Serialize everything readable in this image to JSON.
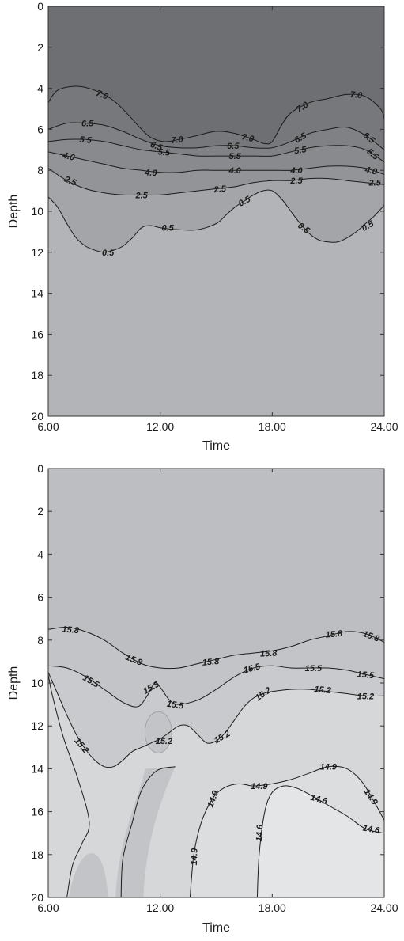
{
  "chart_data": [
    {
      "type": "contour",
      "xlabel": "Time",
      "ylabel": "Depth",
      "xlim": [
        6,
        24
      ],
      "ylim": [
        0,
        20
      ],
      "y_inverted": true,
      "x_ticks": [
        6,
        12,
        18,
        24
      ],
      "x_tick_labels": [
        "6.00",
        "12.00",
        "18.00",
        "24.00"
      ],
      "y_ticks": [
        0,
        2,
        4,
        6,
        8,
        10,
        12,
        14,
        16,
        18,
        20
      ],
      "y_tick_labels": [
        "0",
        "2",
        "4",
        "6",
        "8",
        "10",
        "12",
        "14",
        "16",
        "18",
        "20"
      ],
      "contour_levels": [
        7.0,
        6.5,
        5.5,
        4.0,
        2.5,
        0.5
      ],
      "contours": [
        {
          "level": 7.0,
          "label": "7.0",
          "x": [
            6.0,
            6.5,
            7.5,
            8.5,
            9.5,
            10.3,
            11.0,
            11.5,
            12.2,
            13.0,
            14.0,
            15.0,
            16.0,
            17.0,
            17.6,
            18.0,
            18.5,
            19.0,
            20.0,
            21.0,
            22.0,
            23.0,
            23.8,
            24.0
          ],
          "y": [
            4.7,
            4.1,
            3.9,
            4.1,
            4.6,
            5.3,
            6.0,
            6.4,
            6.6,
            6.5,
            6.3,
            6.1,
            6.2,
            6.5,
            6.7,
            6.6,
            5.8,
            5.2,
            4.7,
            4.5,
            4.3,
            4.4,
            5.0,
            5.5
          ]
        },
        {
          "level": 6.5,
          "label": "6.5",
          "x": [
            6.0,
            7.0,
            8.0,
            9.0,
            10.0,
            11.0,
            12.0,
            13.0,
            14.0,
            15.0,
            16.0,
            17.0,
            18.0,
            19.0,
            20.0,
            21.0,
            22.0,
            23.0,
            24.0
          ],
          "y": [
            6.0,
            5.7,
            5.7,
            5.8,
            6.1,
            6.5,
            6.8,
            6.9,
            6.9,
            6.8,
            6.8,
            6.9,
            6.9,
            6.6,
            6.2,
            6.0,
            5.9,
            6.3,
            7.0
          ]
        },
        {
          "level": 5.5,
          "label": "5.5",
          "x": [
            6.0,
            7.0,
            8.0,
            9.0,
            10.0,
            11.0,
            12.0,
            13.0,
            14.0,
            15.0,
            16.0,
            17.0,
            18.0,
            19.0,
            20.0,
            21.0,
            22.0,
            23.0,
            24.0
          ],
          "y": [
            6.6,
            6.5,
            6.5,
            6.6,
            6.8,
            7.0,
            7.1,
            7.2,
            7.3,
            7.3,
            7.3,
            7.3,
            7.3,
            7.1,
            6.9,
            6.8,
            6.8,
            7.0,
            7.6
          ]
        },
        {
          "level": 4.0,
          "label": "4.0",
          "x": [
            6.0,
            7.0,
            8.0,
            9.0,
            10.0,
            11.0,
            12.0,
            13.0,
            14.0,
            15.0,
            16.0,
            17.0,
            18.0,
            19.0,
            20.0,
            21.0,
            22.0,
            23.0,
            24.0
          ],
          "y": [
            7.1,
            7.3,
            7.5,
            7.7,
            7.9,
            8.0,
            8.1,
            8.1,
            8.0,
            8.0,
            8.0,
            8.0,
            8.0,
            8.0,
            7.9,
            7.8,
            7.8,
            7.9,
            8.2
          ]
        },
        {
          "level": 2.5,
          "label": "2.5",
          "x": [
            6.0,
            7.0,
            8.0,
            9.0,
            10.0,
            11.0,
            12.0,
            13.0,
            14.0,
            15.0,
            16.0,
            17.0,
            18.0,
            19.0,
            20.0,
            21.0,
            22.0,
            23.0,
            24.0
          ],
          "y": [
            7.9,
            8.5,
            8.9,
            9.1,
            9.2,
            9.2,
            9.2,
            9.1,
            9.0,
            8.9,
            8.8,
            8.6,
            8.5,
            8.5,
            8.4,
            8.4,
            8.5,
            8.6,
            8.7
          ]
        },
        {
          "level": 0.5,
          "label": "0.5",
          "x": [
            6.0,
            6.5,
            7.0,
            7.5,
            8.0,
            8.5,
            9.0,
            9.5,
            10.0,
            10.5,
            11.0,
            11.5,
            12.0,
            13.0,
            14.0,
            15.0,
            15.5,
            16.0,
            16.5,
            17.0,
            17.5,
            18.0,
            18.5,
            19.0,
            19.5,
            20.0,
            20.5,
            21.0,
            21.5,
            22.0,
            22.5,
            23.0,
            23.5,
            24.0
          ],
          "y": [
            9.3,
            9.8,
            10.6,
            11.3,
            11.7,
            11.9,
            12.0,
            11.9,
            11.7,
            11.3,
            10.8,
            10.7,
            10.8,
            10.9,
            10.9,
            10.6,
            10.2,
            9.8,
            9.5,
            9.2,
            9.0,
            9.0,
            9.4,
            10.0,
            10.6,
            11.1,
            11.4,
            11.5,
            11.5,
            11.3,
            11.0,
            10.6,
            10.2,
            9.7
          ]
        }
      ],
      "contour_labels": [
        {
          "text": "7.0",
          "x": 8.9,
          "y": 4.3,
          "angle": 22
        },
        {
          "text": "7.0",
          "x": 12.9,
          "y": 6.5,
          "angle": -6
        },
        {
          "text": "7.0",
          "x": 16.7,
          "y": 6.4,
          "angle": 14
        },
        {
          "text": "7.0",
          "x": 19.6,
          "y": 4.9,
          "angle": -32
        },
        {
          "text": "7.0",
          "x": 22.5,
          "y": 4.3,
          "angle": 5
        },
        {
          "text": "6.5",
          "x": 8.1,
          "y": 5.7,
          "angle": 0
        },
        {
          "text": "6.5",
          "x": 11.8,
          "y": 6.8,
          "angle": 20
        },
        {
          "text": "6.5",
          "x": 15.9,
          "y": 6.8,
          "angle": 0
        },
        {
          "text": "6.5",
          "x": 19.5,
          "y": 6.4,
          "angle": -30
        },
        {
          "text": "6.5",
          "x": 23.2,
          "y": 6.4,
          "angle": 40
        },
        {
          "text": "5.5",
          "x": 8.0,
          "y": 6.5,
          "angle": 5
        },
        {
          "text": "5.5",
          "x": 12.2,
          "y": 7.1,
          "angle": 5
        },
        {
          "text": "5.5",
          "x": 16.0,
          "y": 7.3,
          "angle": 0
        },
        {
          "text": "5.5",
          "x": 19.5,
          "y": 7.0,
          "angle": -8
        },
        {
          "text": "5.5",
          "x": 23.4,
          "y": 7.2,
          "angle": 40
        },
        {
          "text": "4.0",
          "x": 7.1,
          "y": 7.3,
          "angle": 15
        },
        {
          "text": "4.0",
          "x": 11.5,
          "y": 8.1,
          "angle": 3
        },
        {
          "text": "4.0",
          "x": 16.0,
          "y": 8.0,
          "angle": 0
        },
        {
          "text": "4.0",
          "x": 19.3,
          "y": 8.0,
          "angle": 0
        },
        {
          "text": "4.0",
          "x": 23.3,
          "y": 8.0,
          "angle": 12
        },
        {
          "text": "2.5",
          "x": 7.2,
          "y": 8.5,
          "angle": 22
        },
        {
          "text": "2.5",
          "x": 11.0,
          "y": 9.2,
          "angle": 0
        },
        {
          "text": "2.5",
          "x": 15.2,
          "y": 8.9,
          "angle": -6
        },
        {
          "text": "2.5",
          "x": 19.3,
          "y": 8.5,
          "angle": 0
        },
        {
          "text": "2.5",
          "x": 23.5,
          "y": 8.6,
          "angle": 0
        },
        {
          "text": "0.5",
          "x": 9.2,
          "y": 12.0,
          "angle": 0
        },
        {
          "text": "0.5",
          "x": 12.4,
          "y": 10.8,
          "angle": 0
        },
        {
          "text": "0.5",
          "x": 16.5,
          "y": 9.5,
          "angle": -28
        },
        {
          "text": "0.5",
          "x": 19.7,
          "y": 10.8,
          "angle": 35
        },
        {
          "text": "0.5",
          "x": 23.1,
          "y": 10.7,
          "angle": -30
        }
      ],
      "fills": [
        {
          "region": "above-7.0",
          "color": "#6e6f72"
        },
        {
          "region": "7.0-6.5",
          "color": "#77787b"
        },
        {
          "region": "6.5-5.5",
          "color": "#808184"
        },
        {
          "region": "5.5-4.0",
          "color": "#898a8d"
        },
        {
          "region": "4.0-2.5",
          "color": "#939497"
        },
        {
          "region": "2.5-0.5",
          "color": "#a4a5a8"
        },
        {
          "region": "below-0.5",
          "color": "#b3b4b7"
        }
      ]
    },
    {
      "type": "contour",
      "xlabel": "Time",
      "ylabel": "Depth",
      "xlim": [
        6,
        24
      ],
      "ylim": [
        0,
        20
      ],
      "y_inverted": true,
      "x_ticks": [
        6,
        12,
        18,
        24
      ],
      "x_tick_labels": [
        "6.00",
        "12.00",
        "18.00",
        "24.00"
      ],
      "y_ticks": [
        0,
        2,
        4,
        6,
        8,
        10,
        12,
        14,
        16,
        18,
        20
      ],
      "y_tick_labels": [
        "0",
        "2",
        "4",
        "6",
        "8",
        "10",
        "12",
        "14",
        "16",
        "18",
        "20"
      ],
      "contour_levels": [
        15.8,
        15.5,
        15.2,
        14.9,
        14.6
      ],
      "contours": [
        {
          "level": 15.8,
          "label": "15.8",
          "x": [
            6.0,
            7.0,
            8.0,
            9.0,
            10.0,
            11.0,
            12.0,
            13.0,
            14.0,
            15.0,
            16.0,
            17.0,
            18.0,
            19.0,
            20.0,
            21.0,
            22.0,
            23.0,
            24.0
          ],
          "y": [
            7.5,
            7.4,
            7.6,
            8.0,
            8.6,
            9.1,
            9.3,
            9.3,
            9.1,
            8.9,
            8.7,
            8.6,
            8.5,
            8.3,
            8.0,
            7.8,
            7.6,
            7.7,
            8.1
          ]
        },
        {
          "level": 15.5,
          "label": "15.5",
          "x": [
            6.0,
            7.0,
            8.0,
            9.0,
            10.0,
            10.8,
            11.3,
            11.7,
            12.0,
            12.5,
            13.0,
            14.0,
            15.0,
            16.0,
            17.0,
            18.0,
            19.0,
            20.0,
            21.0,
            22.0,
            23.0,
            24.0
          ],
          "y": [
            9.2,
            9.3,
            9.7,
            10.3,
            10.9,
            11.1,
            10.6,
            10.0,
            10.2,
            10.8,
            11.0,
            10.8,
            10.3,
            9.7,
            9.3,
            9.2,
            9.3,
            9.3,
            9.3,
            9.4,
            9.6,
            9.8
          ]
        },
        {
          "level": 15.2,
          "label": "15.2",
          "x": [
            6.0,
            6.5,
            7.0,
            7.5,
            8.0,
            8.5,
            9.0,
            9.5,
            10.0,
            10.5,
            11.0,
            11.5,
            12.0,
            12.5,
            13.0,
            13.5,
            14.0,
            14.5,
            15.0,
            15.5,
            16.0,
            16.5,
            17.0,
            17.5,
            18.0,
            19.0,
            20.0,
            21.0,
            22.0,
            23.0,
            24.0
          ],
          "y": [
            9.5,
            10.5,
            11.5,
            12.4,
            13.1,
            13.6,
            13.9,
            13.9,
            13.6,
            13.2,
            13.0,
            12.8,
            12.6,
            12.3,
            12.0,
            12.0,
            12.4,
            12.8,
            12.7,
            12.3,
            11.7,
            11.1,
            10.7,
            10.5,
            10.4,
            10.3,
            10.3,
            10.4,
            10.5,
            10.6,
            10.6
          ]
        },
        {
          "level": 14.9,
          "label": "14.9",
          "x": [
            13.6,
            13.8,
            14.2,
            14.8,
            15.4,
            16.2,
            17.0,
            18.0,
            19.0,
            20.0,
            21.0,
            22.0,
            22.8,
            23.5,
            24.0
          ],
          "y": [
            20.0,
            18.0,
            16.5,
            15.4,
            14.9,
            14.7,
            14.8,
            14.7,
            14.5,
            14.2,
            13.9,
            14.0,
            14.6,
            15.6,
            16.4
          ]
        },
        {
          "level": 14.6,
          "label": "14.6",
          "x": [
            17.2,
            17.3,
            17.6,
            18.0,
            18.6,
            19.3,
            20.0,
            21.0,
            22.0,
            23.0,
            24.0
          ],
          "y": [
            20.0,
            18.0,
            16.0,
            15.1,
            14.8,
            14.9,
            15.2,
            15.7,
            16.2,
            16.8,
            17.0
          ]
        }
      ],
      "contour_labels": [
        {
          "text": "15.8",
          "x": 7.2,
          "y": 7.5,
          "angle": 5
        },
        {
          "text": "15.8",
          "x": 10.6,
          "y": 8.9,
          "angle": 22
        },
        {
          "text": "15.8",
          "x": 14.7,
          "y": 9.0,
          "angle": -5
        },
        {
          "text": "15.8",
          "x": 17.8,
          "y": 8.6,
          "angle": -3
        },
        {
          "text": "15.8",
          "x": 21.3,
          "y": 7.7,
          "angle": -5
        },
        {
          "text": "15.8",
          "x": 23.3,
          "y": 7.8,
          "angle": 20
        },
        {
          "text": "15.5",
          "x": 8.3,
          "y": 9.9,
          "angle": 30
        },
        {
          "text": "15.5",
          "x": 11.5,
          "y": 10.2,
          "angle": -30
        },
        {
          "text": "15.5",
          "x": 12.8,
          "y": 11.0,
          "angle": 8
        },
        {
          "text": "15.5",
          "x": 16.9,
          "y": 9.3,
          "angle": -15
        },
        {
          "text": "15.5",
          "x": 20.2,
          "y": 9.3,
          "angle": 0
        },
        {
          "text": "15.5",
          "x": 23.0,
          "y": 9.6,
          "angle": 5
        },
        {
          "text": "15.2",
          "x": 7.8,
          "y": 12.9,
          "angle": 50
        },
        {
          "text": "15.2",
          "x": 12.2,
          "y": 12.7,
          "angle": 0
        },
        {
          "text": "15.2",
          "x": 15.3,
          "y": 12.5,
          "angle": -30
        },
        {
          "text": "15.2",
          "x": 17.5,
          "y": 10.5,
          "angle": -35
        },
        {
          "text": "15.2",
          "x": 20.7,
          "y": 10.3,
          "angle": 5
        },
        {
          "text": "15.2",
          "x": 23.0,
          "y": 10.6,
          "angle": 0
        },
        {
          "text": "14.9",
          "x": 14.8,
          "y": 15.4,
          "angle": -70
        },
        {
          "text": "14.9",
          "x": 17.3,
          "y": 14.8,
          "angle": 0
        },
        {
          "text": "14.9",
          "x": 21.0,
          "y": 13.9,
          "angle": 0
        },
        {
          "text": "14.9",
          "x": 13.8,
          "y": 18.1,
          "angle": -88
        },
        {
          "text": "14.9",
          "x": 23.3,
          "y": 15.3,
          "angle": 55
        },
        {
          "text": "14.6",
          "x": 17.3,
          "y": 17.0,
          "angle": -88
        },
        {
          "text": "14.6",
          "x": 20.5,
          "y": 15.4,
          "angle": 15
        },
        {
          "text": "14.6",
          "x": 23.3,
          "y": 16.8,
          "angle": 10
        }
      ],
      "fills": [
        {
          "region": "above-15.8",
          "color": "#bdbec1"
        },
        {
          "region": "15.8-15.5",
          "color": "#c3c4c7"
        },
        {
          "region": "15.5-15.2",
          "color": "#c9cacd"
        },
        {
          "region": "15.2-14.9",
          "color": "#d6d7d9"
        },
        {
          "region": "14.9-14.6",
          "color": "#dcdddf"
        },
        {
          "region": "below-14.6",
          "color": "#e4e5e7"
        }
      ]
    }
  ]
}
